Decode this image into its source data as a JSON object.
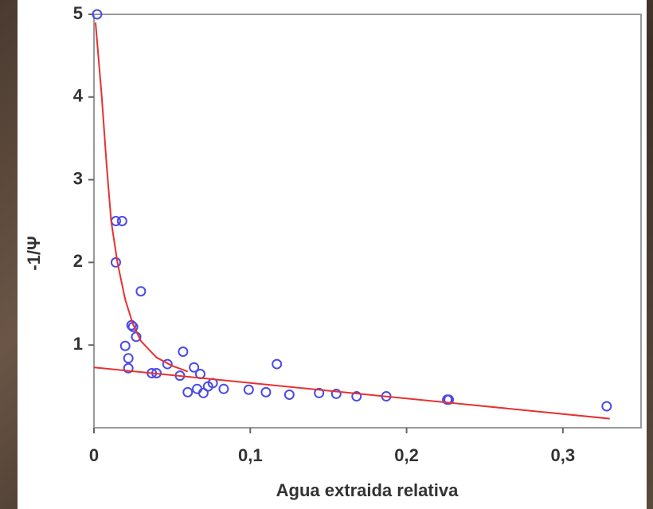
{
  "chart_data": {
    "type": "scatter",
    "xlabel": "Agua extraida relativa",
    "ylabel": "-1/Ψ",
    "xlim": [
      0,
      0.35
    ],
    "ylim": [
      0,
      5
    ],
    "xticks": [
      0,
      {
        "value": 0.1,
        "label": "0,1"
      },
      {
        "value": 0.2,
        "label": "0,2"
      },
      {
        "value": 0.3,
        "label": "0,3"
      }
    ],
    "yticks": [
      1,
      2,
      3,
      4,
      5
    ],
    "series": [
      {
        "mode": "markers",
        "color": "#4a4ae6",
        "x": [
          0.002,
          0.014,
          0.018,
          0.014,
          0.03,
          0.024,
          0.025,
          0.027,
          0.02,
          0.022,
          0.022,
          0.037,
          0.04,
          0.047,
          0.055,
          0.057,
          0.06,
          0.064,
          0.066,
          0.068,
          0.07,
          0.073,
          0.076,
          0.083,
          0.099,
          0.11,
          0.117,
          0.125,
          0.144,
          0.155,
          0.168,
          0.187,
          0.226,
          0.227,
          0.328
        ],
        "values": [
          5.0,
          2.5,
          2.5,
          2.0,
          1.65,
          1.24,
          1.22,
          1.1,
          0.99,
          0.84,
          0.72,
          0.66,
          0.66,
          0.77,
          0.63,
          0.92,
          0.43,
          0.73,
          0.47,
          0.65,
          0.42,
          0.5,
          0.54,
          0.47,
          0.46,
          0.43,
          0.77,
          0.4,
          0.42,
          0.41,
          0.38,
          0.38,
          0.34,
          0.34,
          0.26
        ]
      },
      {
        "mode": "line",
        "color": "#e83030",
        "x": [
          0.001,
          0.005,
          0.008,
          0.011,
          0.015,
          0.02,
          0.025,
          0.03,
          0.04,
          0.05,
          0.06
        ],
        "values": [
          4.9,
          4.0,
          3.2,
          2.5,
          2.0,
          1.55,
          1.25,
          1.05,
          0.85,
          0.75,
          0.68
        ]
      },
      {
        "mode": "line",
        "color": "#e83030",
        "x": [
          0,
          0.33
        ],
        "values": [
          0.73,
          0.11
        ]
      }
    ]
  }
}
